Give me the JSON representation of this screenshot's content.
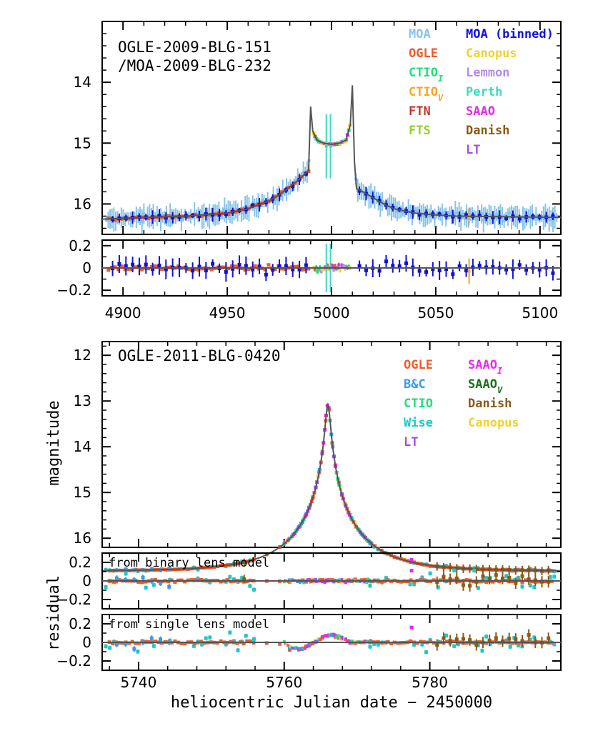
{
  "chart_data": [
    {
      "type": "scatter",
      "panel": "top",
      "title": "OGLE-2009-BLG-151",
      "subtitle": "/MOA-2009-BLG-232",
      "xlim": [
        4890,
        5110
      ],
      "ylim_main": [
        16.5,
        13.0
      ],
      "ylim_resid": [
        -0.25,
        0.25
      ],
      "x_ticks": [
        "4900",
        "4950",
        "5000",
        "5050",
        "5100"
      ],
      "y_ticks_main": [
        "14",
        "15",
        "16"
      ],
      "y_ticks_resid": [
        "0.2",
        "0",
        "−0.2"
      ],
      "legend": {
        "col1": [
          {
            "label": "MOA",
            "color": "#87c3ea"
          },
          {
            "label": "OGLE",
            "color": "#f05a28"
          },
          {
            "label": "CTIO",
            "sub": "I",
            "color": "#1fe07a"
          },
          {
            "label": "CTIO",
            "sub": "V",
            "color": "#f5a623"
          },
          {
            "label": "FTN",
            "color": "#c0392b"
          },
          {
            "label": "FTS",
            "color": "#9acd32"
          }
        ],
        "col2": [
          {
            "label": "MOA (binned)",
            "color": "#1010dd"
          },
          {
            "label": "Canopus",
            "color": "#f2d22e"
          },
          {
            "label": "Lemmon",
            "color": "#b48de8"
          },
          {
            "label": "Perth",
            "color": "#3fd9c0"
          },
          {
            "label": "SAAO",
            "color": "#e82ae8"
          },
          {
            "label": "Danish",
            "color": "#8b5a14"
          },
          {
            "label": "LT",
            "color": "#a050e6"
          }
        ]
      },
      "model_curve": {
        "x": [
          4890,
          4910,
          4930,
          4950,
          4960,
          4970,
          4975,
          4980,
          4985,
          4989,
          4990,
          4991,
          4993,
          4996,
          5000,
          5004,
          5007,
          5009,
          5010,
          5011,
          5012,
          5015,
          5020,
          5025,
          5030,
          5040,
          5050,
          5060,
          5080,
          5110
        ],
        "y": [
          16.25,
          16.22,
          16.2,
          16.15,
          16.08,
          15.95,
          15.85,
          15.72,
          15.58,
          15.45,
          14.4,
          14.8,
          14.95,
          15.0,
          15.02,
          15.0,
          14.95,
          14.7,
          14.05,
          15.3,
          15.75,
          15.8,
          15.9,
          16.0,
          16.08,
          16.15,
          16.18,
          16.2,
          16.21,
          16.22
        ]
      }
    },
    {
      "type": "scatter",
      "panel": "bottom",
      "title": "OGLE-2011-BLG-0420",
      "xlim": [
        5735,
        5798
      ],
      "ylim_main": [
        16.2,
        11.7
      ],
      "ylim_resid": [
        -0.3,
        0.3
      ],
      "x_ticks": [
        "5740",
        "5760",
        "5780"
      ],
      "y_ticks_main": [
        "12",
        "13",
        "14",
        "15",
        "16"
      ],
      "y_ticks_resid": [
        "0.2",
        "0",
        "−0.2"
      ],
      "ylabel_main": "magnitude",
      "ylabel_resid": "residual",
      "xlabel": "heliocentric Julian date − 2450000",
      "resid_notes": [
        "from binary lens model",
        "from single lens model"
      ],
      "legend": {
        "col1": [
          {
            "label": "OGLE",
            "color": "#f05a28"
          },
          {
            "label": "B&C",
            "color": "#3a9be8"
          },
          {
            "label": "CTIO",
            "color": "#1fe07a"
          },
          {
            "label": "Wise",
            "color": "#1fc8c8"
          },
          {
            "label": "LT",
            "color": "#a050e6"
          }
        ],
        "col2": [
          {
            "label": "SAAO",
            "sub": "I",
            "color": "#e82ae8"
          },
          {
            "label": "SAAO",
            "sub": "V",
            "color": "#1a6e1a"
          },
          {
            "label": "Danish",
            "color": "#8b5a14"
          },
          {
            "label": "Canopus",
            "color": "#f2d22e"
          }
        ]
      },
      "model_curve": {
        "t0": 5766.0,
        "u0": 0.035,
        "tE": 9.0,
        "baseline_mag": 16.72
      }
    }
  ]
}
